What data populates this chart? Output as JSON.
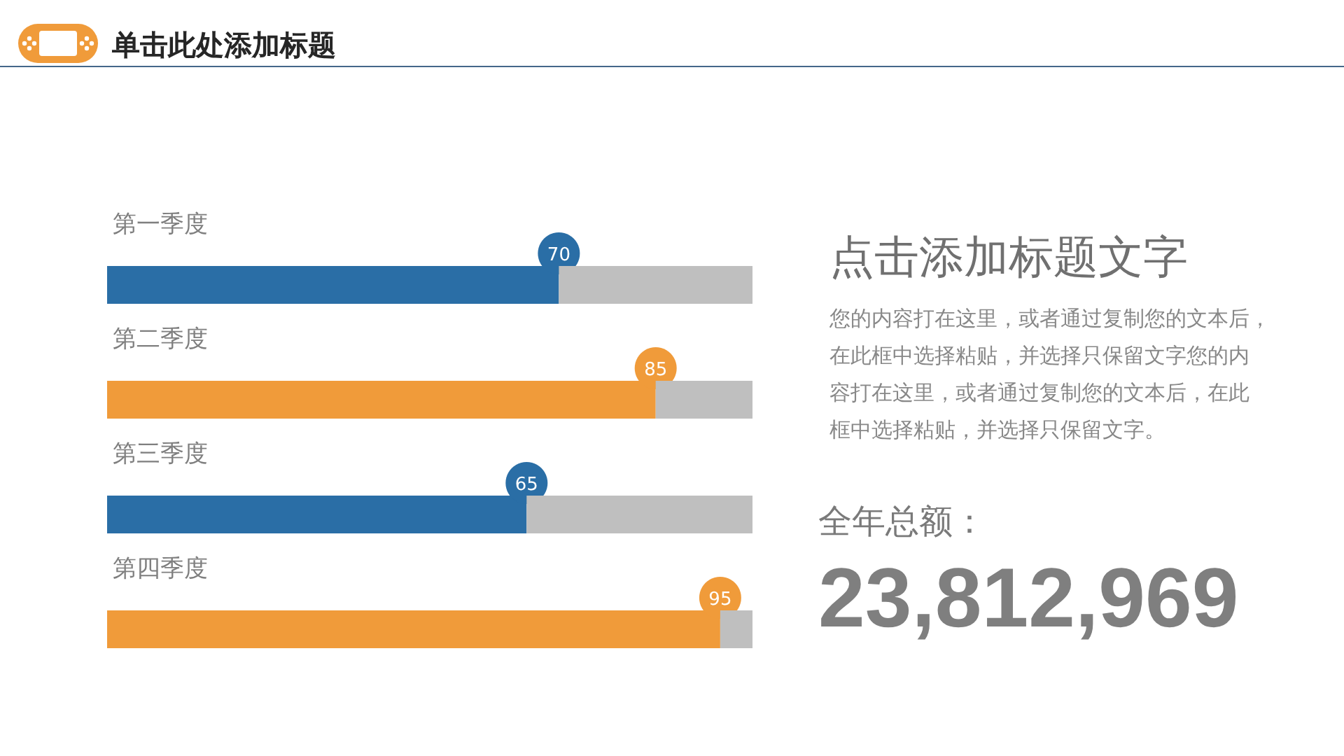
{
  "chart_data": {
    "type": "bar",
    "orientation": "horizontal",
    "stacked": true,
    "tick_labels": "y",
    "title": "单击此处添加标题",
    "categories": [
      "第一季度",
      "第二季度",
      "第三季度",
      "第四季度"
    ],
    "series": [
      {
        "colors": [
          "#2a6ea6",
          "#f09b3a",
          "#2a6ea6",
          "#f09b3a"
        ],
        "values": [
          70,
          85,
          65,
          95
        ],
        "value_labels": [
          "70",
          "85",
          "65",
          "95"
        ]
      },
      {
        "color": "#bfbfbf",
        "values": [
          30,
          15,
          35,
          5
        ]
      }
    ],
    "annotations": [
      "点击添加标题文字",
      "您的内容打在这里，或者通过复制您的文本后，在此框中选择粘贴，并选择只保留文字您的内容打在这里，或者通过复制您的文本后，在此框中选择粘贴，并选择只保留文字。",
      "全年总额：",
      "23,812,969"
    ]
  }
}
